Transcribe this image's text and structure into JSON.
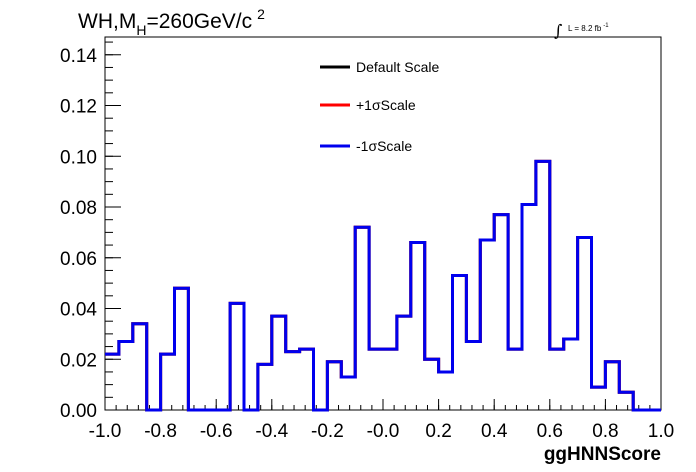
{
  "chart_data": {
    "type": "line",
    "title_main": "WH,M",
    "title_sub": "H",
    "title_rest": "=260GeV/c",
    "title_sup": "2",
    "lumi_integral": "∫",
    "lumi_text": "L = 8.2 fb",
    "lumi_sup": "-1",
    "xlabel": "ggHNNScore",
    "ylabel": "",
    "xlim": [
      -1.0,
      1.0
    ],
    "ylim": [
      0.0,
      0.147
    ],
    "grid": false,
    "legend_position": "top-center",
    "x_ticks": [
      "-1.0",
      "-0.8",
      "-0.6",
      "-0.4",
      "-0.2",
      "-0.0",
      "0.2",
      "0.4",
      "0.6",
      "0.8",
      "1.0"
    ],
    "x_tick_values": [
      -1.0,
      -0.8,
      -0.6,
      -0.4,
      -0.2,
      0.0,
      0.2,
      0.4,
      0.6,
      0.8,
      1.0
    ],
    "y_ticks": [
      "0.00",
      "0.02",
      "0.04",
      "0.06",
      "0.08",
      "0.10",
      "0.12",
      "0.14"
    ],
    "y_tick_values": [
      0.0,
      0.02,
      0.04,
      0.06,
      0.08,
      0.1,
      0.12,
      0.14
    ],
    "bin_edges": [
      -1.0,
      -0.95,
      -0.9,
      -0.85,
      -0.8,
      -0.75,
      -0.7,
      -0.65,
      -0.6,
      -0.55,
      -0.5,
      -0.45,
      -0.4,
      -0.35,
      -0.3,
      -0.25,
      -0.2,
      -0.15,
      -0.1,
      -0.05,
      0.0,
      0.05,
      0.1,
      0.15,
      0.2,
      0.25,
      0.3,
      0.35,
      0.4,
      0.45,
      0.5,
      0.55,
      0.6,
      0.65,
      0.7,
      0.75,
      0.8,
      0.85,
      0.9,
      0.95,
      1.0
    ],
    "series": [
      {
        "name": "Default Scale",
        "color": "#000000",
        "values": [
          0.022,
          0.027,
          0.034,
          0.0,
          0.022,
          0.048,
          0.0,
          0.0,
          0.0,
          0.042,
          0.0,
          0.018,
          0.037,
          0.023,
          0.024,
          0.0,
          0.019,
          0.013,
          0.072,
          0.024,
          0.024,
          0.037,
          0.066,
          0.02,
          0.015,
          0.053,
          0.027,
          0.067,
          0.077,
          0.024,
          0.081,
          0.098,
          0.024,
          0.028,
          0.068,
          0.009,
          0.019,
          0.007,
          0.0,
          0.0
        ]
      },
      {
        "name": "+1σScale",
        "color": "#ff0000",
        "values": [
          0.022,
          0.027,
          0.034,
          0.0,
          0.022,
          0.048,
          0.0,
          0.0,
          0.0,
          0.042,
          0.0,
          0.018,
          0.037,
          0.023,
          0.024,
          0.0,
          0.019,
          0.013,
          0.072,
          0.024,
          0.024,
          0.037,
          0.066,
          0.02,
          0.015,
          0.053,
          0.027,
          0.067,
          0.077,
          0.024,
          0.081,
          0.098,
          0.024,
          0.028,
          0.068,
          0.009,
          0.019,
          0.007,
          0.0,
          0.0
        ]
      },
      {
        "name": "-1σScale",
        "color": "#0000ee",
        "values": [
          0.022,
          0.027,
          0.034,
          0.0,
          0.022,
          0.048,
          0.0,
          0.0,
          0.0,
          0.042,
          0.0,
          0.018,
          0.037,
          0.023,
          0.024,
          0.0,
          0.019,
          0.013,
          0.072,
          0.024,
          0.024,
          0.037,
          0.066,
          0.02,
          0.015,
          0.053,
          0.027,
          0.067,
          0.077,
          0.024,
          0.081,
          0.098,
          0.024,
          0.028,
          0.068,
          0.009,
          0.019,
          0.007,
          0.0,
          0.0
        ]
      }
    ]
  }
}
